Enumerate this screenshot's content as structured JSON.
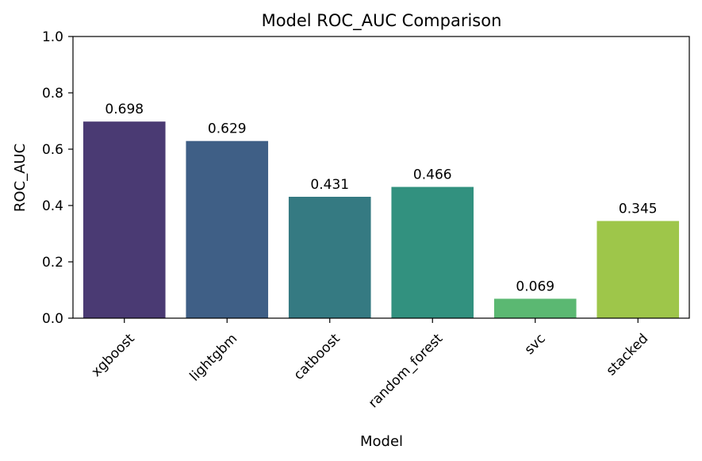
{
  "chart_data": {
    "type": "bar",
    "title": "Model ROC_AUC Comparison",
    "xlabel": "Model",
    "ylabel": "ROC_AUC",
    "categories": [
      "xgboost",
      "lightgbm",
      "catboost",
      "random_forest",
      "svc",
      "stacked"
    ],
    "values": [
      0.698,
      0.629,
      0.431,
      0.466,
      0.069,
      0.345
    ],
    "value_labels": [
      "0.698",
      "0.629",
      "0.431",
      "0.466",
      "0.069",
      "0.345"
    ],
    "colors": [
      "#4a3a73",
      "#3f5f86",
      "#357a82",
      "#32917f",
      "#5bb872",
      "#9ec64a"
    ],
    "ylim": [
      0,
      1.0
    ],
    "yticks": [
      0.0,
      0.2,
      0.4,
      0.6,
      0.8,
      1.0
    ],
    "ytick_labels": [
      "0.0",
      "0.2",
      "0.4",
      "0.6",
      "0.8",
      "1.0"
    ],
    "grid": false,
    "legend": "none"
  }
}
